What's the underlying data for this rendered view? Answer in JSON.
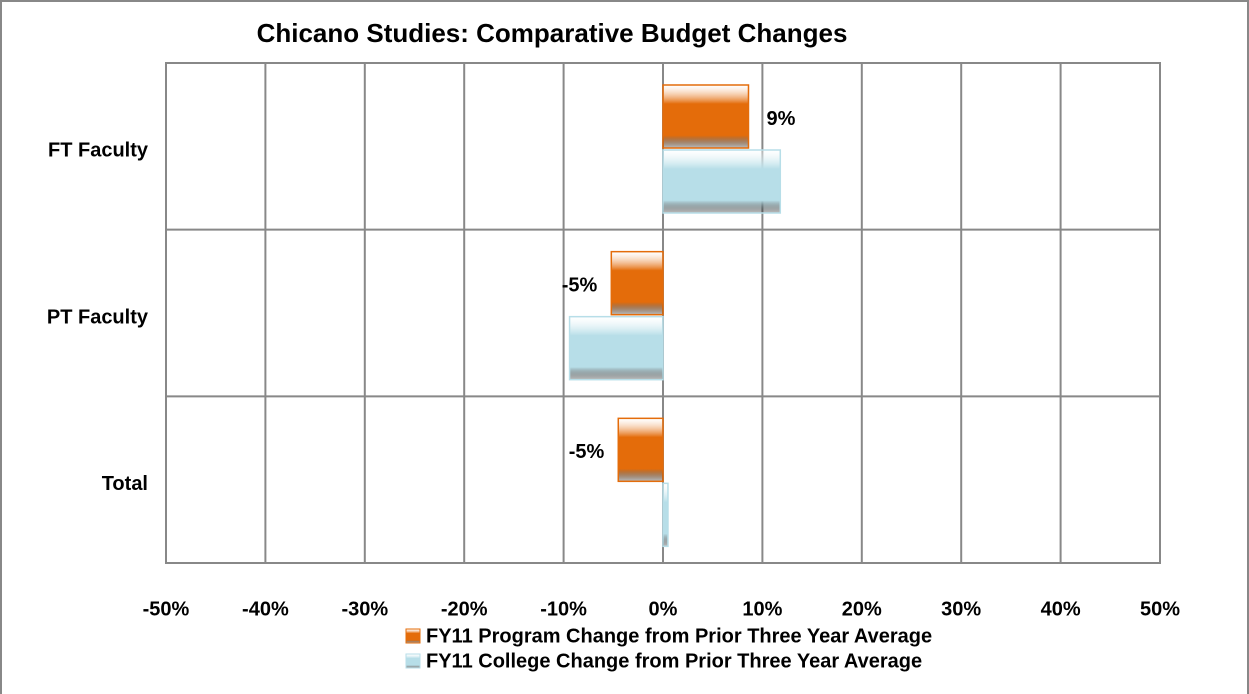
{
  "chart_data": {
    "type": "hbar",
    "title": "Chicano Studies: Comparative Budget Changes",
    "categories": [
      "FT Faculty",
      "PT Faculty",
      "Total"
    ],
    "series": [
      {
        "name": "FY11 Program Change from Prior Three Year Average",
        "color": "#e46c0a",
        "values": [
          8.6,
          -5.2,
          -4.5
        ],
        "value_labels": [
          "9%",
          "-5%",
          "-5%"
        ]
      },
      {
        "name": "FY11 College Change from Prior Three Year Average",
        "color": "#b7dee8",
        "values": [
          11.8,
          -9.4,
          0.5
        ]
      }
    ],
    "xlim": [
      -50,
      50
    ],
    "xticks": [
      {
        "value": -50,
        "label": "-50%"
      },
      {
        "value": -40,
        "label": "-40%"
      },
      {
        "value": -30,
        "label": "-30%"
      },
      {
        "value": -20,
        "label": "-20%"
      },
      {
        "value": -10,
        "label": "-10%"
      },
      {
        "value": 0,
        "label": "0%"
      },
      {
        "value": 10,
        "label": "10%"
      },
      {
        "value": 20,
        "label": "20%"
      },
      {
        "value": 30,
        "label": "30%"
      },
      {
        "value": 40,
        "label": "40%"
      },
      {
        "value": 50,
        "label": "50%"
      }
    ],
    "grid": true,
    "legend": "bottom"
  }
}
